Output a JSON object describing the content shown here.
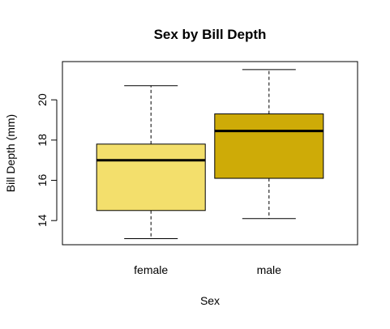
{
  "chart_data": {
    "type": "box",
    "title": "Sex by Bill Depth",
    "xlabel": "Sex",
    "ylabel": "Bill Depth (mm)",
    "categories": [
      "female",
      "male"
    ],
    "ylim": [
      12.8,
      21.9
    ],
    "y_ticks": [
      14,
      16,
      18,
      20
    ],
    "y_tick_labels": [
      "14",
      "16",
      "18",
      "20"
    ],
    "grid": false,
    "legend": "none",
    "boxes": [
      {
        "category": "female",
        "whisker_low": 13.1,
        "q1": 14.5,
        "median": 17.0,
        "q3": 17.8,
        "whisker_high": 20.7,
        "color": "#F3DF6C"
      },
      {
        "category": "male",
        "whisker_low": 14.1,
        "q1": 16.1,
        "median": 18.45,
        "q3": 19.3,
        "whisker_high": 21.5,
        "color": "#CEAB07"
      }
    ]
  }
}
